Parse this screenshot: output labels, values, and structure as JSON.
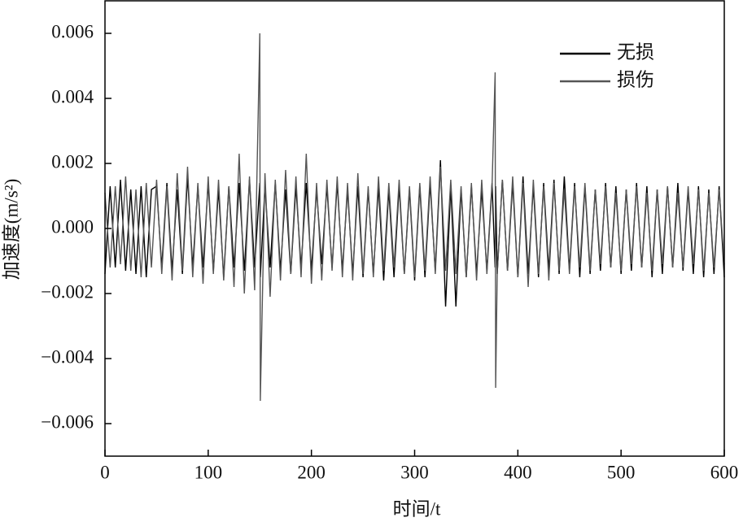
{
  "chart_data": {
    "type": "line",
    "xlabel": "时间/t",
    "ylabel": "加速度(m/s²)",
    "xlim": [
      0,
      600
    ],
    "xticks": [
      0,
      100,
      200,
      300,
      400,
      500,
      600
    ],
    "ylim": [
      -0.007,
      0.007
    ],
    "yticks": [
      {
        "value": -0.006,
        "label": "−0.006"
      },
      {
        "value": -0.004,
        "label": "−0.004"
      },
      {
        "value": -0.002,
        "label": "−0.002"
      },
      {
        "value": 0,
        "label": "0.000"
      },
      0.002,
      0.004,
      0.006
    ],
    "legend": "upper right",
    "x": [
      0,
      5,
      10,
      15,
      20,
      25,
      30,
      35,
      40,
      45,
      50,
      55,
      60,
      65,
      70,
      75,
      80,
      85,
      90,
      95,
      100,
      105,
      110,
      115,
      120,
      125,
      130,
      135,
      140,
      145,
      150,
      150.5,
      155,
      160,
      165,
      170,
      175,
      180,
      185,
      190,
      195,
      200,
      205,
      210,
      215,
      220,
      225,
      230,
      235,
      240,
      245,
      250,
      255,
      260,
      265,
      270,
      275,
      280,
      285,
      290,
      295,
      300,
      305,
      310,
      315,
      320,
      325,
      330,
      335,
      340,
      345,
      350,
      355,
      360,
      365,
      370,
      375,
      378,
      378.5,
      380,
      385,
      390,
      395,
      400,
      405,
      410,
      415,
      420,
      425,
      430,
      435,
      440,
      445,
      450,
      455,
      460,
      465,
      470,
      475,
      480,
      485,
      490,
      495,
      500,
      505,
      510,
      515,
      520,
      525,
      530,
      535,
      540,
      545,
      550,
      555,
      560,
      565,
      570,
      575,
      580,
      585,
      590,
      595,
      600
    ],
    "series": [
      {
        "name": "无损",
        "color": "#000000",
        "values": [
          -0.0014,
          0.0013,
          -0.0012,
          0.0015,
          -0.0013,
          0.0012,
          -0.0014,
          0.0013,
          -0.0015,
          0.0012,
          0.0013,
          -0.0012,
          0.0014,
          -0.0013,
          0.0012,
          -0.0014,
          0.0016,
          -0.0012,
          0.0013,
          -0.0012,
          0.0014,
          -0.0013,
          0.0012,
          -0.0015,
          0.0013,
          -0.0012,
          0.0014,
          -0.0013,
          0.0015,
          -0.0012,
          0.0014,
          -0.0015,
          0.0013,
          -0.0012,
          0.0014,
          -0.0013,
          0.0012,
          -0.0014,
          0.0013,
          -0.0012,
          0.0014,
          -0.0013,
          0.0012,
          -0.0011,
          0.0013,
          -0.0012,
          0.0014,
          -0.0013,
          0.0012,
          -0.0014,
          0.0013,
          -0.0015,
          0.0012,
          -0.0014,
          0.0013,
          -0.0016,
          0.0012,
          -0.0015,
          0.0013,
          -0.0014,
          0.0012,
          -0.0016,
          0.0013,
          -0.0015,
          0.0014,
          -0.0013,
          0.0021,
          -0.0024,
          0.0013,
          -0.0024,
          0.0012,
          -0.0015,
          0.0013,
          -0.0014,
          0.0012,
          -0.0013,
          0.0014,
          -0.0012,
          0.0013,
          -0.0014,
          0.0015,
          -0.0013,
          0.0014,
          -0.0015,
          0.0016,
          -0.0014,
          0.0013,
          -0.0015,
          0.0014,
          -0.0013,
          0.0015,
          -0.0014,
          0.0016,
          -0.0013,
          0.0014,
          -0.0015,
          0.0013,
          -0.0014,
          0.0012,
          -0.0013,
          0.0014,
          -0.0012,
          0.0013,
          -0.0014,
          0.0012,
          -0.0013,
          0.0014,
          -0.0012,
          0.0013,
          -0.0015,
          0.0012,
          -0.0014,
          0.0013,
          -0.0012,
          0.0014,
          -0.0013,
          0.0012,
          -0.0014,
          0.0013,
          -0.0015,
          0.0012,
          -0.0014,
          0.0013,
          -0.0015
        ]
      },
      {
        "name": "损伤",
        "color": "#555555",
        "values": [
          0.0011,
          -0.0012,
          0.0013,
          -0.0011,
          0.0016,
          -0.0013,
          0.0012,
          -0.0015,
          0.0014,
          -0.0012,
          0.0015,
          -0.0014,
          0.0013,
          -0.0016,
          0.0017,
          -0.0013,
          0.0019,
          -0.0015,
          0.0014,
          -0.0017,
          0.0016,
          -0.0014,
          0.0015,
          -0.0016,
          0.0013,
          -0.0018,
          0.0023,
          -0.002,
          0.0016,
          -0.0019,
          0.006,
          -0.0053,
          0.0017,
          -0.0021,
          0.0015,
          -0.0016,
          0.0018,
          -0.0014,
          0.0016,
          -0.0015,
          0.0023,
          -0.0017,
          0.0014,
          -0.0016,
          0.0015,
          -0.0013,
          0.0016,
          -0.0015,
          0.0014,
          -0.0016,
          0.0017,
          -0.0014,
          0.0013,
          -0.0015,
          0.0016,
          -0.0013,
          0.0014,
          -0.0012,
          0.0015,
          -0.0014,
          0.0013,
          -0.0015,
          0.0014,
          -0.0013,
          0.0016,
          -0.0014,
          0.0019,
          -0.0013,
          0.0015,
          -0.0014,
          0.0013,
          -0.0015,
          0.0014,
          -0.0016,
          0.0015,
          -0.0014,
          0.0013,
          0.0048,
          -0.0049,
          -0.0014,
          0.0015,
          -0.0013,
          0.0016,
          -0.0015,
          0.0014,
          -0.0018,
          0.0015,
          -0.0014,
          0.0013,
          -0.0016,
          0.0014,
          -0.0013,
          0.0012,
          -0.0014,
          0.0013,
          -0.0012,
          0.0014,
          -0.0013,
          0.0012,
          -0.0011,
          0.0013,
          -0.0012,
          0.0011,
          -0.0013,
          0.0012,
          -0.0011,
          0.0013,
          -0.0012,
          0.0011,
          -0.0013,
          0.0012,
          -0.0011,
          0.0013,
          -0.0012,
          0.0011,
          -0.0012,
          0.0013,
          -0.0011,
          0.0012,
          -0.0013,
          0.0011,
          -0.0012,
          0.0012,
          -0.0011
        ]
      }
    ]
  }
}
